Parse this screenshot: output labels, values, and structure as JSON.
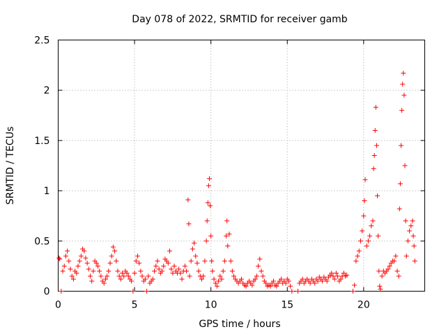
{
  "chart_data": {
    "type": "scatter",
    "title": "Day 078 of 2022, SRMTID for receiver gamb",
    "xlabel": "GPS time / hours",
    "ylabel": "SRMTID / TECUs",
    "xlim": [
      0,
      24
    ],
    "ylim": [
      0,
      2.5
    ],
    "x_ticks": [
      0,
      5,
      10,
      15,
      20
    ],
    "x_tick_labels": [
      "0",
      "5",
      "10",
      "15",
      "20"
    ],
    "y_ticks": [
      0,
      0.5,
      1,
      1.5,
      2,
      2.5
    ],
    "y_tick_labels": [
      "0",
      "0.5",
      "1",
      "1.5",
      "2",
      "2.5"
    ],
    "grid": true,
    "marker": "+",
    "color": "#ff0000",
    "series": [
      {
        "name": "SRMTID",
        "points": [
          [
            0.05,
            0.33
          ],
          [
            0.1,
            0.32
          ],
          [
            0.2,
            0.0
          ],
          [
            0.3,
            0.2
          ],
          [
            0.4,
            0.25
          ],
          [
            0.5,
            0.35
          ],
          [
            0.6,
            0.4
          ],
          [
            0.7,
            0.3
          ],
          [
            0.8,
            0.22
          ],
          [
            0.9,
            0.15
          ],
          [
            1.0,
            0.12
          ],
          [
            1.1,
            0.2
          ],
          [
            1.2,
            0.18
          ],
          [
            1.3,
            0.25
          ],
          [
            1.4,
            0.3
          ],
          [
            1.5,
            0.35
          ],
          [
            1.6,
            0.42
          ],
          [
            1.7,
            0.4
          ],
          [
            1.8,
            0.33
          ],
          [
            1.9,
            0.28
          ],
          [
            2.0,
            0.22
          ],
          [
            2.1,
            0.15
          ],
          [
            2.2,
            0.1
          ],
          [
            2.3,
            0.2
          ],
          [
            2.4,
            0.3
          ],
          [
            2.5,
            0.28
          ],
          [
            2.6,
            0.25
          ],
          [
            2.7,
            0.2
          ],
          [
            2.8,
            0.15
          ],
          [
            2.9,
            0.1
          ],
          [
            3.0,
            0.08
          ],
          [
            3.1,
            0.12
          ],
          [
            3.2,
            0.15
          ],
          [
            3.3,
            0.2
          ],
          [
            3.4,
            0.28
          ],
          [
            3.5,
            0.35
          ],
          [
            3.6,
            0.44
          ],
          [
            3.7,
            0.4
          ],
          [
            3.8,
            0.3
          ],
          [
            3.9,
            0.2
          ],
          [
            4.0,
            0.15
          ],
          [
            4.1,
            0.12
          ],
          [
            4.2,
            0.18
          ],
          [
            4.3,
            0.15
          ],
          [
            4.4,
            0.2
          ],
          [
            4.5,
            0.18
          ],
          [
            4.6,
            0.15
          ],
          [
            4.7,
            0.12
          ],
          [
            4.8,
            0.1
          ],
          [
            4.9,
            0.0
          ],
          [
            5.0,
            0.18
          ],
          [
            5.1,
            0.3
          ],
          [
            5.2,
            0.35
          ],
          [
            5.3,
            0.28
          ],
          [
            5.4,
            0.2
          ],
          [
            5.5,
            0.15
          ],
          [
            5.6,
            0.1
          ],
          [
            5.7,
            0.12
          ],
          [
            5.8,
            0.0
          ],
          [
            5.9,
            0.15
          ],
          [
            6.0,
            0.08
          ],
          [
            6.1,
            0.1
          ],
          [
            6.2,
            0.12
          ],
          [
            6.3,
            0.2
          ],
          [
            6.4,
            0.25
          ],
          [
            6.5,
            0.3
          ],
          [
            6.6,
            0.22
          ],
          [
            6.7,
            0.18
          ],
          [
            6.8,
            0.2
          ],
          [
            6.9,
            0.25
          ],
          [
            7.0,
            0.32
          ],
          [
            7.1,
            0.3
          ],
          [
            7.2,
            0.28
          ],
          [
            7.3,
            0.4
          ],
          [
            7.4,
            0.22
          ],
          [
            7.5,
            0.18
          ],
          [
            7.6,
            0.25
          ],
          [
            7.7,
            0.2
          ],
          [
            7.8,
            0.18
          ],
          [
            7.9,
            0.22
          ],
          [
            8.0,
            0.18
          ],
          [
            8.1,
            0.12
          ],
          [
            8.2,
            0.2
          ],
          [
            8.3,
            0.25
          ],
          [
            8.4,
            0.2
          ],
          [
            8.5,
            0.91
          ],
          [
            8.55,
            0.67
          ],
          [
            8.6,
            0.15
          ],
          [
            8.7,
            0.3
          ],
          [
            8.8,
            0.42
          ],
          [
            8.9,
            0.48
          ],
          [
            9.0,
            0.35
          ],
          [
            9.1,
            0.28
          ],
          [
            9.2,
            0.2
          ],
          [
            9.3,
            0.15
          ],
          [
            9.4,
            0.12
          ],
          [
            9.5,
            0.15
          ],
          [
            9.6,
            0.3
          ],
          [
            9.7,
            0.5
          ],
          [
            9.75,
            0.7
          ],
          [
            9.8,
            0.88
          ],
          [
            9.85,
            1.05
          ],
          [
            9.9,
            1.12
          ],
          [
            9.95,
            0.85
          ],
          [
            10.0,
            0.55
          ],
          [
            10.05,
            0.3
          ],
          [
            10.1,
            0.2
          ],
          [
            10.2,
            0.12
          ],
          [
            10.3,
            0.08
          ],
          [
            10.4,
            0.05
          ],
          [
            10.5,
            0.1
          ],
          [
            10.6,
            0.15
          ],
          [
            10.7,
            0.12
          ],
          [
            10.8,
            0.2
          ],
          [
            10.9,
            0.3
          ],
          [
            11.0,
            0.55
          ],
          [
            11.05,
            0.7
          ],
          [
            11.1,
            0.45
          ],
          [
            11.2,
            0.57
          ],
          [
            11.3,
            0.3
          ],
          [
            11.4,
            0.2
          ],
          [
            11.5,
            0.15
          ],
          [
            11.6,
            0.12
          ],
          [
            11.7,
            0.1
          ],
          [
            11.8,
            0.08
          ],
          [
            11.9,
            0.1
          ],
          [
            12.0,
            0.12
          ],
          [
            12.1,
            0.08
          ],
          [
            12.2,
            0.06
          ],
          [
            12.3,
            0.05
          ],
          [
            12.4,
            0.08
          ],
          [
            12.5,
            0.1
          ],
          [
            12.6,
            0.08
          ],
          [
            12.7,
            0.06
          ],
          [
            12.8,
            0.1
          ],
          [
            12.9,
            0.12
          ],
          [
            13.0,
            0.15
          ],
          [
            13.1,
            0.25
          ],
          [
            13.2,
            0.32
          ],
          [
            13.3,
            0.2
          ],
          [
            13.4,
            0.15
          ],
          [
            13.5,
            0.1
          ],
          [
            13.6,
            0.08
          ],
          [
            13.7,
            0.05
          ],
          [
            13.8,
            0.06
          ],
          [
            13.9,
            0.05
          ],
          [
            14.0,
            0.08
          ],
          [
            14.1,
            0.1
          ],
          [
            14.2,
            0.06
          ],
          [
            14.3,
            0.05
          ],
          [
            14.4,
            0.08
          ],
          [
            14.5,
            0.1
          ],
          [
            14.6,
            0.12
          ],
          [
            14.7,
            0.08
          ],
          [
            14.8,
            0.1
          ],
          [
            14.9,
            0.08
          ],
          [
            15.0,
            0.12
          ],
          [
            15.1,
            0.1
          ],
          [
            15.2,
            0.05
          ],
          [
            15.3,
            0.0
          ],
          [
            15.7,
            0.0
          ],
          [
            15.8,
            0.08
          ],
          [
            15.9,
            0.1
          ],
          [
            16.0,
            0.12
          ],
          [
            16.1,
            0.08
          ],
          [
            16.2,
            0.1
          ],
          [
            16.3,
            0.12
          ],
          [
            16.4,
            0.1
          ],
          [
            16.5,
            0.08
          ],
          [
            16.6,
            0.12
          ],
          [
            16.7,
            0.1
          ],
          [
            16.8,
            0.08
          ],
          [
            16.9,
            0.12
          ],
          [
            17.0,
            0.1
          ],
          [
            17.1,
            0.14
          ],
          [
            17.2,
            0.12
          ],
          [
            17.3,
            0.1
          ],
          [
            17.4,
            0.14
          ],
          [
            17.5,
            0.12
          ],
          [
            17.6,
            0.1
          ],
          [
            17.7,
            0.14
          ],
          [
            17.8,
            0.16
          ],
          [
            17.9,
            0.18
          ],
          [
            18.0,
            0.15
          ],
          [
            18.1,
            0.12
          ],
          [
            18.2,
            0.18
          ],
          [
            18.3,
            0.15
          ],
          [
            18.4,
            0.1
          ],
          [
            18.5,
            0.12
          ],
          [
            18.6,
            0.15
          ],
          [
            18.7,
            0.18
          ],
          [
            18.8,
            0.15
          ],
          [
            18.9,
            0.16
          ],
          [
            19.3,
            0.0
          ],
          [
            19.4,
            0.06
          ],
          [
            19.5,
            0.3
          ],
          [
            19.6,
            0.35
          ],
          [
            19.7,
            0.4
          ],
          [
            19.8,
            0.5
          ],
          [
            19.9,
            0.6
          ],
          [
            20.0,
            0.75
          ],
          [
            20.05,
            0.9
          ],
          [
            20.1,
            1.11
          ],
          [
            20.2,
            0.45
          ],
          [
            20.3,
            0.5
          ],
          [
            20.4,
            0.55
          ],
          [
            20.5,
            0.65
          ],
          [
            20.6,
            0.7
          ],
          [
            20.65,
            1.22
          ],
          [
            20.7,
            1.35
          ],
          [
            20.75,
            1.6
          ],
          [
            20.8,
            1.83
          ],
          [
            20.85,
            1.45
          ],
          [
            20.9,
            0.95
          ],
          [
            20.95,
            0.55
          ],
          [
            21.0,
            0.2
          ],
          [
            21.05,
            0.05
          ],
          [
            21.1,
            0.02
          ],
          [
            21.2,
            0.15
          ],
          [
            21.3,
            0.2
          ],
          [
            21.4,
            0.18
          ],
          [
            21.5,
            0.2
          ],
          [
            21.6,
            0.22
          ],
          [
            21.7,
            0.25
          ],
          [
            21.8,
            0.28
          ],
          [
            21.9,
            0.3
          ],
          [
            22.0,
            0.3
          ],
          [
            22.1,
            0.35
          ],
          [
            22.2,
            0.2
          ],
          [
            22.3,
            0.15
          ],
          [
            22.35,
            0.82
          ],
          [
            22.4,
            1.07
          ],
          [
            22.45,
            1.45
          ],
          [
            22.5,
            1.8
          ],
          [
            22.55,
            2.06
          ],
          [
            22.6,
            2.17
          ],
          [
            22.65,
            1.95
          ],
          [
            22.7,
            1.25
          ],
          [
            22.75,
            0.7
          ],
          [
            22.8,
            0.35
          ],
          [
            22.9,
            0.5
          ],
          [
            23.0,
            0.6
          ],
          [
            23.1,
            0.65
          ],
          [
            23.2,
            0.7
          ],
          [
            23.25,
            0.55
          ],
          [
            23.3,
            0.45
          ],
          [
            23.35,
            0.3
          ]
        ]
      }
    ]
  }
}
